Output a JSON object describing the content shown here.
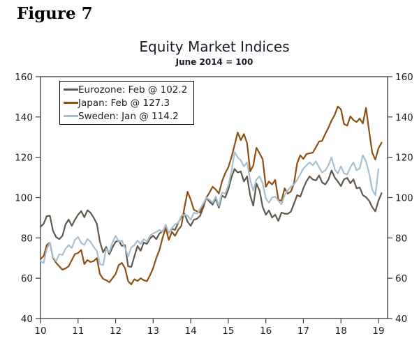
{
  "figure_label": "Figure 7",
  "chart_data": {
    "type": "line",
    "title": "Equity Market Indices",
    "subtitle": "June 2014 = 100",
    "x_start": "2010-01",
    "x_frequency": "monthly",
    "x_tick_labels": [
      "10",
      "11",
      "12",
      "13",
      "14",
      "15",
      "16",
      "17",
      "18",
      "19"
    ],
    "y_ticks": [
      40,
      60,
      80,
      100,
      120,
      140,
      160
    ],
    "ylim": [
      40,
      160
    ],
    "grid": false,
    "y_axis_mirrored": true,
    "legend_position": "top-left-inside",
    "axis_color": "#3c3c3c",
    "text_color": "#1c1c28",
    "series": [
      {
        "name": "Eurozone",
        "legend": "Eurozone: Feb @ 102.2",
        "color": "#60584d",
        "last_point": "2019-02",
        "values": [
          85.5,
          87,
          90.8,
          91,
          83.5,
          80.4,
          79.4,
          81,
          86.7,
          89.1,
          86,
          89,
          91.5,
          93.3,
          90.2,
          93.7,
          92.5,
          90,
          87,
          78,
          72.9,
          75.5,
          71.9,
          75.3,
          78.1,
          78.7,
          76,
          76.4,
          65.9,
          65.6,
          70.8,
          76,
          73.6,
          77.7,
          77,
          79.8,
          81.1,
          79.4,
          82.2,
          83.3,
          86,
          82.5,
          84.5,
          84,
          87.5,
          90.5,
          92,
          88,
          86,
          89,
          89.5,
          91,
          95,
          100,
          98,
          96.5,
          99.5,
          95,
          101,
          100,
          104,
          110,
          114.2,
          112.5,
          113,
          108,
          110.5,
          101,
          96,
          107,
          103.5,
          95.3,
          91.5,
          93.6,
          90.1,
          91.5,
          88.4,
          92.6,
          92,
          91.9,
          93,
          97,
          101.2,
          100.5,
          104.6,
          108.1,
          110.5,
          109,
          108.5,
          111,
          107.5,
          106.5,
          109,
          113.5,
          110,
          108,
          105.7,
          109.1,
          109.8,
          107.1,
          109.1,
          104.6,
          105,
          101.2,
          100.2,
          98.4,
          95.3,
          93.2,
          98.5,
          102.2
        ]
      },
      {
        "name": "Japan",
        "legend": "Japan: Feb @ 127.3",
        "color": "#8e4f13",
        "last_point": "2019-02",
        "values": [
          69.5,
          71,
          76.5,
          77.7,
          70.1,
          67.6,
          65.9,
          64.2,
          64.9,
          65.9,
          69,
          72,
          72.5,
          74,
          67,
          69,
          68,
          68.5,
          70,
          62,
          59.7,
          59,
          58,
          60,
          62.1,
          66.5,
          67.6,
          65,
          58.5,
          56.9,
          59.5,
          58.6,
          60,
          59,
          58.5,
          61.5,
          65,
          70,
          74,
          80,
          85,
          79,
          83,
          81,
          84,
          86,
          95,
          102.9,
          99,
          94,
          93.2,
          92.6,
          96.5,
          100,
          102.5,
          105.4,
          104,
          102,
          108,
          112,
          115,
          120,
          126,
          132.3,
          128.5,
          131.5,
          127,
          113,
          116,
          124.7,
          122,
          119,
          105.4,
          108,
          106.5,
          108.8,
          99,
          98.4,
          104.6,
          102,
          103,
          107,
          117,
          121,
          119.2,
          121.6,
          122,
          122.3,
          125,
          127.8,
          128.2,
          131.6,
          134.7,
          138.2,
          141,
          145.2,
          143.8,
          136.5,
          135.7,
          140.3,
          138.5,
          137.5,
          139.2,
          136.8,
          144.5,
          133,
          122.3,
          118.8,
          124.5,
          127.3
        ]
      },
      {
        "name": "Sweden",
        "legend": "Sweden: Jan @ 114.2",
        "color": "#a7c0cf",
        "last_point": "2019-01",
        "values": [
          68.5,
          67.5,
          74.5,
          77.7,
          70.5,
          68.4,
          72,
          71.5,
          74.6,
          76.4,
          75,
          79,
          80.5,
          77.5,
          76.5,
          79.5,
          78,
          75.5,
          73.5,
          67,
          66.5,
          74.6,
          72.9,
          77.7,
          81.1,
          78.1,
          78.7,
          75,
          70.8,
          75.3,
          76.4,
          78.7,
          77,
          79.4,
          78.1,
          81.1,
          82.2,
          82.9,
          84,
          83,
          86.5,
          82.5,
          85,
          86.7,
          87.5,
          91,
          91.5,
          91,
          89,
          92.5,
          92,
          94.5,
          97,
          100,
          99,
          97.5,
          100.5,
          96,
          102.5,
          102,
          106,
          113,
          122.6,
          120,
          118.5,
          115.5,
          117.5,
          108.5,
          103.5,
          109,
          110.5,
          107,
          99.5,
          97.5,
          100,
          100.5,
          98.5,
          96.7,
          101.2,
          103.5,
          105.4,
          106.5,
          108.8,
          111.6,
          114.4,
          116,
          117.5,
          116,
          118,
          115,
          112.5,
          113.5,
          116,
          120,
          114,
          112,
          115.5,
          112,
          111.5,
          115,
          117.5,
          113.5,
          114.5,
          121,
          118,
          112,
          104,
          101.2,
          114.2
        ]
      }
    ]
  }
}
